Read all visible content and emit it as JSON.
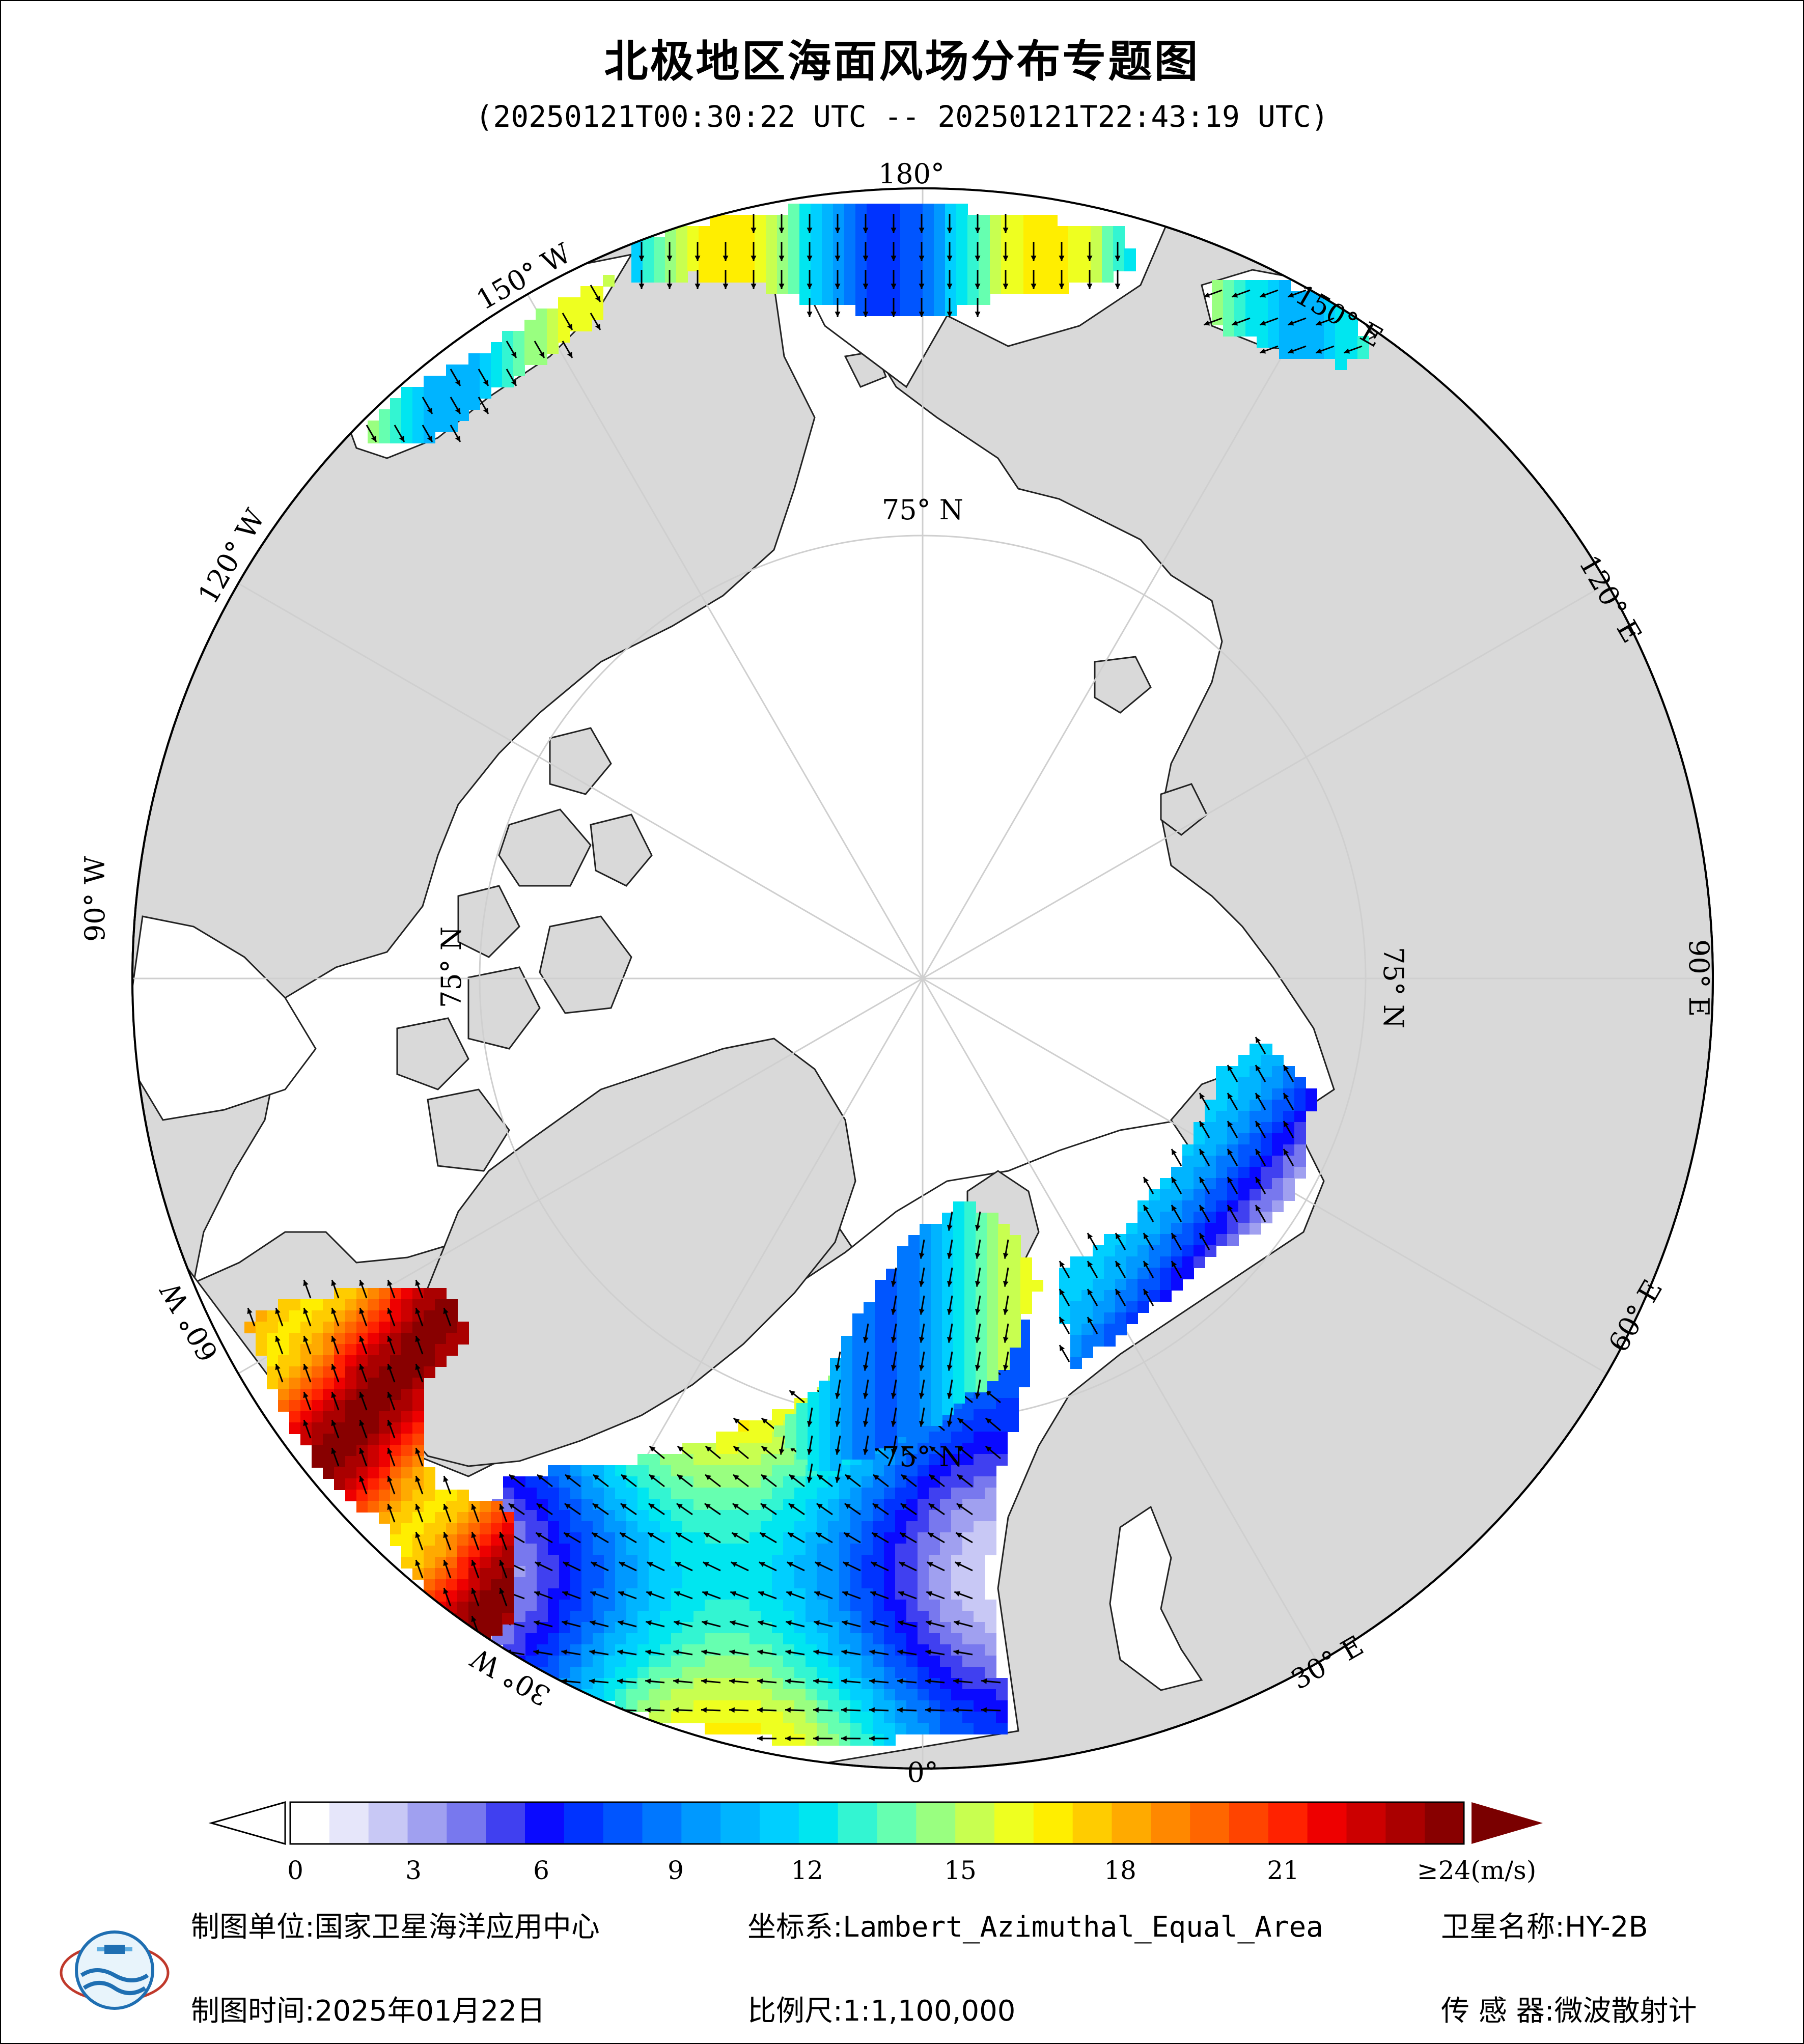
{
  "title": "北极地区海面风场分布专题图",
  "subtitle": "(20250121T00:30:22 UTC -- 20250121T22:43:19 UTC)",
  "map": {
    "projection": "Lambert_Azimuthal_Equal_Area",
    "center": "North Pole",
    "latitude_circle_label": "75° N",
    "meridian_labels": [
      "180°",
      "150° E",
      "120° E",
      "90° E",
      "60° E",
      "30° E",
      "0°",
      "30° W",
      "60° W",
      "90° W",
      "120° W",
      "150° W"
    ],
    "parallel_labels": [
      "75° N",
      "75° N",
      "75° N",
      "75° N"
    ],
    "land_color": "#d9d9d9",
    "ocean_ice_color": "#ffffff"
  },
  "wind_field_regions": [
    {
      "area": "Greenland Sea / North Atlantic",
      "dominant_speed_ms": "3-12"
    },
    {
      "area": "Barents Sea",
      "dominant_speed_ms": "6-12"
    },
    {
      "area": "Labrador Sea / Baffin",
      "dominant_speed_ms": "18-24+"
    },
    {
      "area": "Irminger Sea",
      "dominant_speed_ms": "12-18"
    },
    {
      "area": "Bering Strait / Chukchi",
      "dominant_speed_ms": "6-15"
    },
    {
      "area": "Gulf of Alaska",
      "dominant_speed_ms": "9-15"
    }
  ],
  "colorbar": {
    "unit_label": "≥24(m/s)",
    "ticks": [
      "0",
      "3",
      "6",
      "9",
      "12",
      "15",
      "18",
      "21"
    ],
    "min": 0,
    "max": 24,
    "colors": [
      "#ffffff",
      "#e6e6fa",
      "#c8c8f5",
      "#a0a0f0",
      "#7878ee",
      "#4040f0",
      "#0a0aff",
      "#0033ff",
      "#0055ff",
      "#0077ff",
      "#0099ff",
      "#00b4ff",
      "#00cfff",
      "#00e6f0",
      "#33f5d2",
      "#66ffb0",
      "#99ff80",
      "#c8ff50",
      "#eeff20",
      "#ffee00",
      "#ffcc00",
      "#ffaa00",
      "#ff8800",
      "#ff6600",
      "#ff4400",
      "#ff2200",
      "#ee0000",
      "#cc0000",
      "#aa0000",
      "#880000"
    ]
  },
  "info": {
    "unit_label": "制图单位:",
    "unit_value": "国家卫星海洋应用中心",
    "coord_label": "坐标系:",
    "coord_value": "Lambert_Azimuthal_Equal_Area",
    "sat_label": "卫星名称:",
    "sat_value": "HY-2B",
    "time_label": "制图时间:",
    "time_value": "2025年01月22日",
    "scale_label": "比例尺:",
    "scale_value": "1:1,100,000",
    "sensor_label": "传 感 器:",
    "sensor_value": "微波散射计"
  }
}
